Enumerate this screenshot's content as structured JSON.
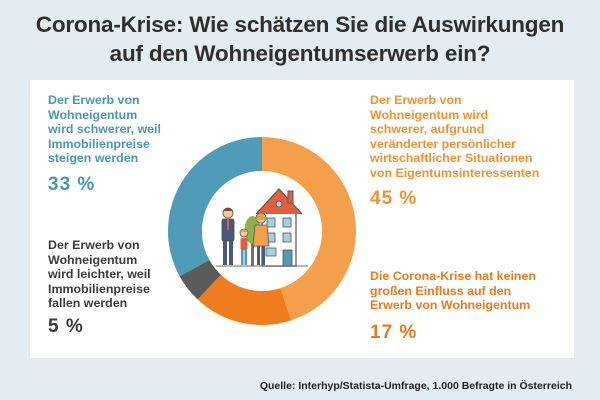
{
  "title": {
    "line1": "Corona-Krise: Wie schätzen Sie die Auswirkungen",
    "line2": "auf den Wohneigentumserwerb ein?"
  },
  "chart_data": {
    "type": "pie",
    "variant": "donut",
    "title": "Corona-Krise: Wie schätzen Sie die Auswirkungen auf den Wohneigentumserwerb ein?",
    "slices": [
      {
        "key": "prices_rise",
        "label_lines": [
          "Der Erwerb von",
          "Wohneigentum",
          "wird schwerer, weil",
          "Immobilienpreise",
          "steigen werden"
        ],
        "value": 33,
        "value_label": "33 %",
        "color": "#4e9cb8"
      },
      {
        "key": "personal_situation",
        "label_lines": [
          "Der Erwerb von",
          "Wohneigentum wird",
          "schwerer, aufgrund",
          "veränderter persönlicher",
          "wirtschaftlicher Situationen",
          "von Eigentumsinteressenten"
        ],
        "value": 45,
        "value_label": "45 %",
        "color": "#f4a04a"
      },
      {
        "key": "no_influence",
        "label_lines": [
          "Die Corona-Krise hat keinen",
          "großen Einfluss auf den",
          "Erwerb von Wohneigentum"
        ],
        "value": 17,
        "value_label": "17 %",
        "color": "#ef7d1d"
      },
      {
        "key": "prices_fall",
        "label_lines": [
          "Der Erwerb von",
          "Wohneigentum",
          "wird leichter, weil",
          "Immobilienpreise",
          "fallen werden"
        ],
        "value": 5,
        "value_label": "5 %",
        "color": "#5b5b5b"
      }
    ]
  },
  "source": "Quelle: Interhyp/Statista-Umfrage, 1.000 Befragte in Österreich"
}
